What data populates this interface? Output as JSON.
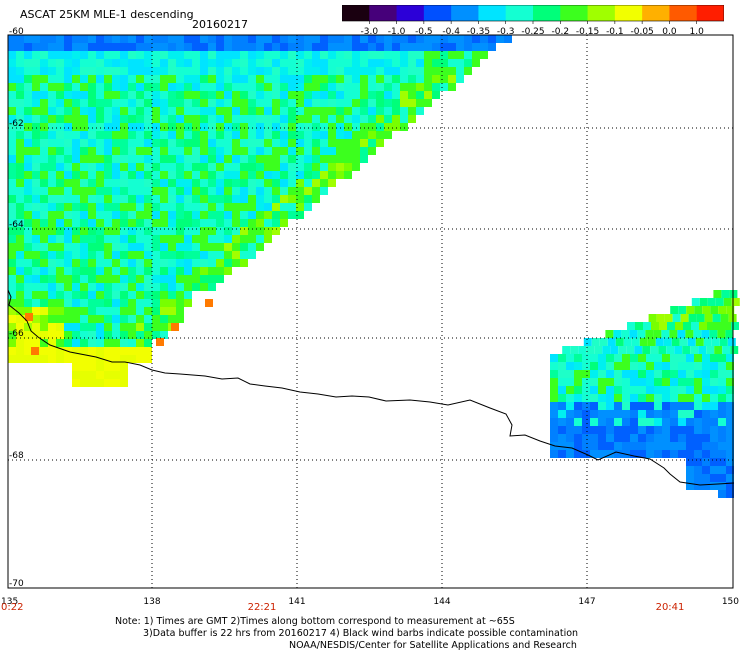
{
  "header": {
    "title": "ASCAT 25KM MLE-1 descending",
    "date": "20160217"
  },
  "legend": {
    "tick_labels": [
      "-3.0",
      "-1.0",
      "-0.5",
      "-0.4",
      "-0.35",
      "-0.3",
      "-0.25",
      "-0.2",
      "-0.15",
      "-0.1",
      "-0.05",
      "0.0",
      "1.0"
    ],
    "colors": [
      "#1a0010",
      "#46007a",
      "#2c00d8",
      "#0050ff",
      "#0090ff",
      "#00e4ff",
      "#14ffd2",
      "#00ff7a",
      "#3cff1e",
      "#a0ff00",
      "#f2ff00",
      "#ffb000",
      "#ff5a00",
      "#ff1e00"
    ]
  },
  "map": {
    "lat_labels": [
      "-60",
      "-62",
      "-64",
      "-66",
      "-68",
      "-70"
    ],
    "lon_labels": [
      "135",
      "138",
      "141",
      "144",
      "147",
      "150"
    ],
    "time_labels": [
      "0:22",
      "22:21",
      "20:41"
    ]
  },
  "notes": {
    "line1": "Note: 1) Times are GMT 2)Times along bottom correspond to measurement at ~65S",
    "line2": "3)Data buffer is 22 hrs from 20160217 4) Black wind barbs indicate possible contamination",
    "line3": "NOAA/NESDIS/Center for Satellite Applications and Research"
  },
  "colors": {
    "frame": "#000000",
    "coast": "#000000",
    "time_label": "#cc2200"
  }
}
